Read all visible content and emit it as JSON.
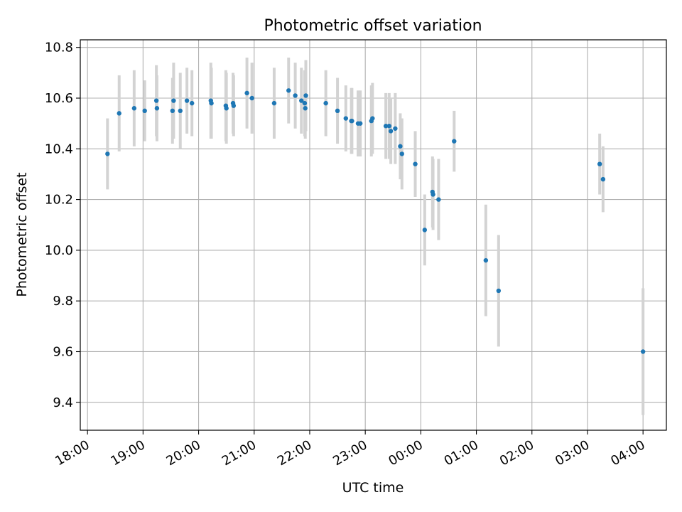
{
  "chart_data": {
    "type": "scatter",
    "title": "Photometric offset variation",
    "xlabel": "UTC time",
    "ylabel": "Photometric offset",
    "x_unit": "hours since 18:00 UTC",
    "xlim": [
      -0.13,
      10.42
    ],
    "ylim": [
      9.29,
      10.83
    ],
    "x_ticks": [
      0,
      1,
      2,
      3,
      4,
      5,
      6,
      7,
      8,
      9,
      10
    ],
    "x_tick_labels": [
      "18:00",
      "19:00",
      "20:00",
      "21:00",
      "22:00",
      "23:00",
      "00:00",
      "01:00",
      "02:00",
      "03:00",
      "04:00"
    ],
    "y_ticks": [
      9.4,
      9.6,
      9.8,
      10.0,
      10.2,
      10.4,
      10.6,
      10.8
    ],
    "y_tick_labels": [
      "9.4",
      "9.6",
      "9.8",
      "10.0",
      "10.2",
      "10.4",
      "10.6",
      "10.8"
    ],
    "grid": true,
    "colors": {
      "point": "#1f77b4",
      "errorbar": "#d3d3d3",
      "grid": "#b0b0b0",
      "axes": "#000000"
    },
    "series": [
      {
        "name": "Photometric offset",
        "x": [
          0.36,
          0.57,
          0.84,
          1.03,
          1.24,
          1.25,
          1.53,
          1.55,
          1.67,
          1.79,
          1.88,
          2.22,
          2.23,
          2.49,
          2.5,
          2.62,
          2.63,
          2.87,
          2.96,
          3.36,
          3.62,
          3.74,
          3.85,
          3.91,
          3.92,
          3.93,
          4.29,
          4.5,
          4.65,
          4.75,
          4.76,
          4.87,
          4.91,
          5.11,
          5.13,
          5.37,
          5.43,
          5.46,
          5.54,
          5.63,
          5.66,
          5.9,
          6.07,
          6.21,
          6.22,
          6.32,
          6.6,
          7.17,
          7.4,
          9.22,
          9.28,
          10.0
        ],
        "y": [
          10.38,
          10.54,
          10.56,
          10.55,
          10.59,
          10.56,
          10.55,
          10.59,
          10.55,
          10.59,
          10.58,
          10.59,
          10.58,
          10.57,
          10.56,
          10.58,
          10.57,
          10.62,
          10.6,
          10.58,
          10.63,
          10.61,
          10.59,
          10.58,
          10.56,
          10.61,
          10.58,
          10.55,
          10.52,
          10.51,
          10.51,
          10.5,
          10.5,
          10.51,
          10.52,
          10.49,
          10.49,
          10.47,
          10.48,
          10.41,
          10.38,
          10.34,
          10.08,
          10.23,
          10.22,
          10.2,
          10.43,
          9.96,
          9.84,
          10.34,
          10.28,
          9.6
        ],
        "yerr": [
          0.14,
          0.15,
          0.15,
          0.12,
          0.14,
          0.13,
          0.13,
          0.15,
          0.15,
          0.13,
          0.13,
          0.15,
          0.14,
          0.14,
          0.14,
          0.12,
          0.12,
          0.14,
          0.14,
          0.14,
          0.13,
          0.13,
          0.13,
          0.13,
          0.12,
          0.14,
          0.13,
          0.13,
          0.13,
          0.13,
          0.13,
          0.13,
          0.13,
          0.14,
          0.14,
          0.13,
          0.13,
          0.13,
          0.14,
          0.13,
          0.14,
          0.13,
          0.14,
          0.14,
          0.14,
          0.16,
          0.12,
          0.22,
          0.22,
          0.12,
          0.13,
          0.25
        ]
      }
    ]
  }
}
